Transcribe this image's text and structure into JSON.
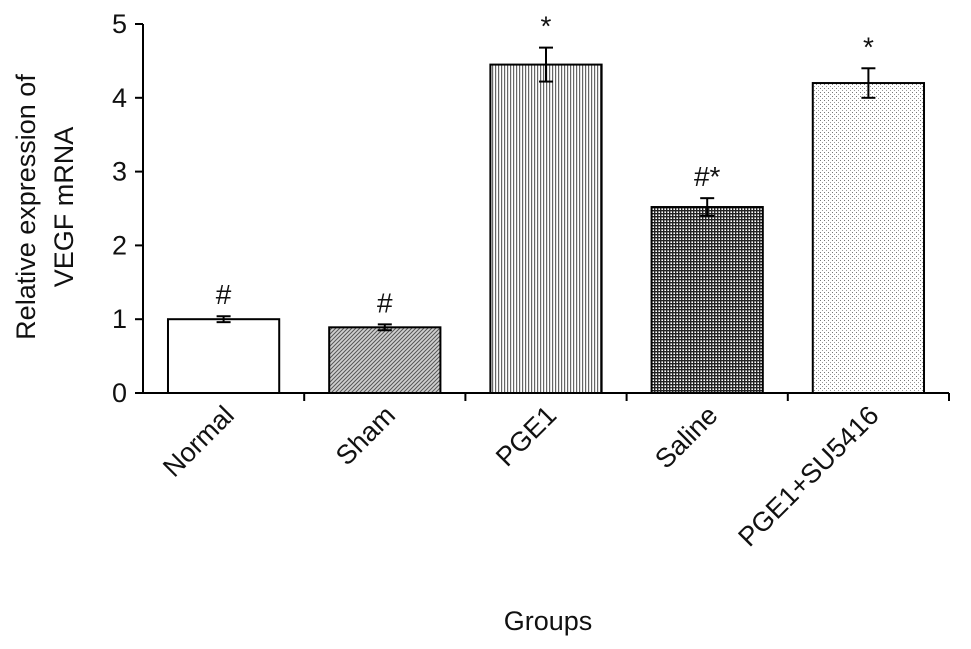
{
  "chart_data": {
    "type": "bar",
    "xlabel": "Groups",
    "ylabel_lines": [
      "Relative expression of",
      "VEGF mRNA"
    ],
    "ylim": [
      0,
      5
    ],
    "yticks": [
      0,
      1,
      2,
      3,
      4,
      5
    ],
    "grid": false,
    "categories": [
      "Normal",
      "Sham",
      "PGE1",
      "Saline",
      "PGE1+SU5416"
    ],
    "values": [
      1.0,
      0.89,
      4.45,
      2.52,
      4.2
    ],
    "errors": [
      0.04,
      0.04,
      0.23,
      0.12,
      0.2
    ],
    "annotations": [
      "#",
      "#",
      "*",
      "#*",
      "*"
    ],
    "fills": [
      "plain",
      "diagonal",
      "vertical",
      "grid",
      "dots"
    ],
    "colors": {
      "bar_outline": "#000000",
      "sham_fill": "#b5b5b5",
      "pge1_fill": "#cfcfcf",
      "saline_fill": "#6a6a6a",
      "su_fill": "#e4e4e4"
    }
  }
}
